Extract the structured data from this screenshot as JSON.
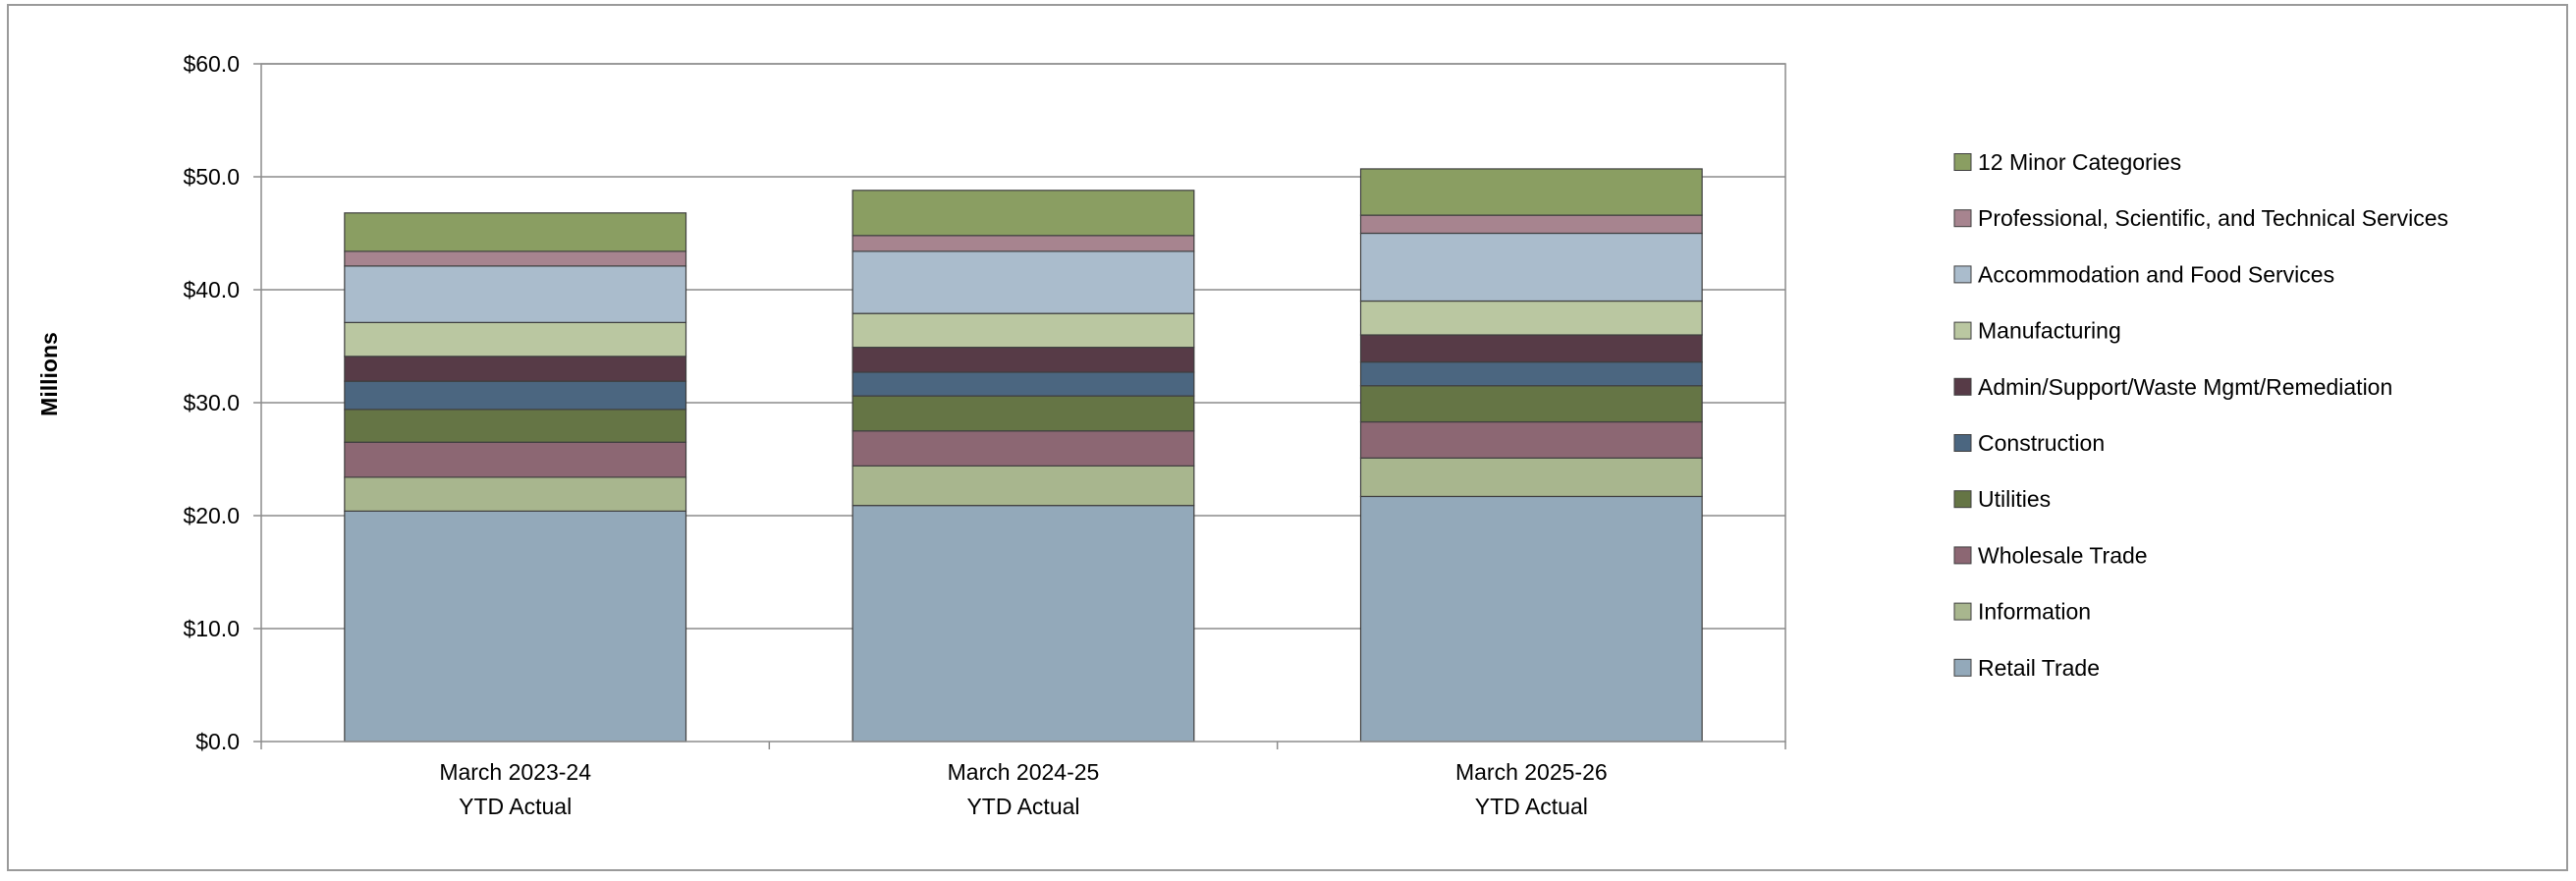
{
  "chart_data": {
    "type": "bar",
    "stacked": true,
    "title": "",
    "xlabel": "",
    "ylabel": "Millions",
    "ylim": [
      0,
      60
    ],
    "yticks": [
      {
        "value": 0,
        "label": "$0.0"
      },
      {
        "value": 10,
        "label": "$10.0"
      },
      {
        "value": 20,
        "label": "$20.0"
      },
      {
        "value": 30,
        "label": "$30.0"
      },
      {
        "value": 40,
        "label": "$40.0"
      },
      {
        "value": 50,
        "label": "$50.0"
      },
      {
        "value": 60,
        "label": "$60.0"
      }
    ],
    "grid": true,
    "legend_position": "right",
    "categories": [
      {
        "line1": "March 2023-24",
        "line2": "YTD Actual"
      },
      {
        "line1": "March 2024-25",
        "line2": "YTD Actual"
      },
      {
        "line1": "March 2025-26",
        "line2": "YTD Actual"
      }
    ],
    "series": [
      {
        "name": "Retail Trade",
        "color": "#93a9ba",
        "values": [
          20.4,
          20.9,
          21.7
        ]
      },
      {
        "name": "Information",
        "color": "#a8b68e",
        "values": [
          3.0,
          3.5,
          3.4
        ]
      },
      {
        "name": "Wholesale Trade",
        "color": "#8c6773",
        "values": [
          3.1,
          3.1,
          3.2
        ]
      },
      {
        "name": "Utilities",
        "color": "#657545",
        "values": [
          2.9,
          3.1,
          3.2
        ]
      },
      {
        "name": "Construction",
        "color": "#4b6680",
        "values": [
          2.5,
          2.1,
          2.1
        ]
      },
      {
        "name": "Admin/Support/Waste Mgmt/Remediation",
        "color": "#573b47",
        "values": [
          2.2,
          2.2,
          2.4
        ]
      },
      {
        "name": "Manufacturing",
        "color": "#bac7a1",
        "values": [
          3.0,
          3.0,
          3.0
        ]
      },
      {
        "name": "Accommodation and Food Services",
        "color": "#aabccc",
        "values": [
          5.0,
          5.5,
          6.0
        ]
      },
      {
        "name": "Professional, Scientific, and Technical Services",
        "color": "#a7848f",
        "values": [
          1.3,
          1.4,
          1.6
        ]
      },
      {
        "name": "12 Minor Categories",
        "color": "#8a9e62",
        "values": [
          3.4,
          4.0,
          4.1
        ]
      }
    ]
  }
}
